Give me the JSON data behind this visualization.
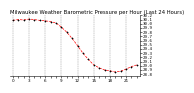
{
  "title": "Milwaukee Weather Barometric Pressure per Hour (Last 24 Hours)",
  "hours": [
    0,
    1,
    2,
    3,
    4,
    5,
    6,
    7,
    8,
    9,
    10,
    11,
    12,
    13,
    14,
    15,
    16,
    17,
    18,
    19,
    20,
    21,
    22,
    23
  ],
  "pressure": [
    30.08,
    30.1,
    30.09,
    30.11,
    30.1,
    30.08,
    30.07,
    30.05,
    30.02,
    29.92,
    29.8,
    29.65,
    29.48,
    29.3,
    29.15,
    29.02,
    28.95,
    28.9,
    28.88,
    28.85,
    28.87,
    28.92,
    28.98,
    29.02
  ],
  "line_color": "#ff0000",
  "marker_color": "#000000",
  "grid_color": "#888888",
  "bg_color": "#ffffff",
  "text_color": "#000000",
  "ylim": [
    28.75,
    30.2
  ],
  "ytick_values": [
    28.8,
    28.9,
    29.0,
    29.1,
    29.2,
    29.3,
    29.4,
    29.5,
    29.6,
    29.7,
    29.8,
    29.9,
    30.0,
    30.1,
    30.2
  ],
  "title_fontsize": 3.8,
  "tick_fontsize": 3.0,
  "line_width": 0.5,
  "marker_size": 2.0
}
